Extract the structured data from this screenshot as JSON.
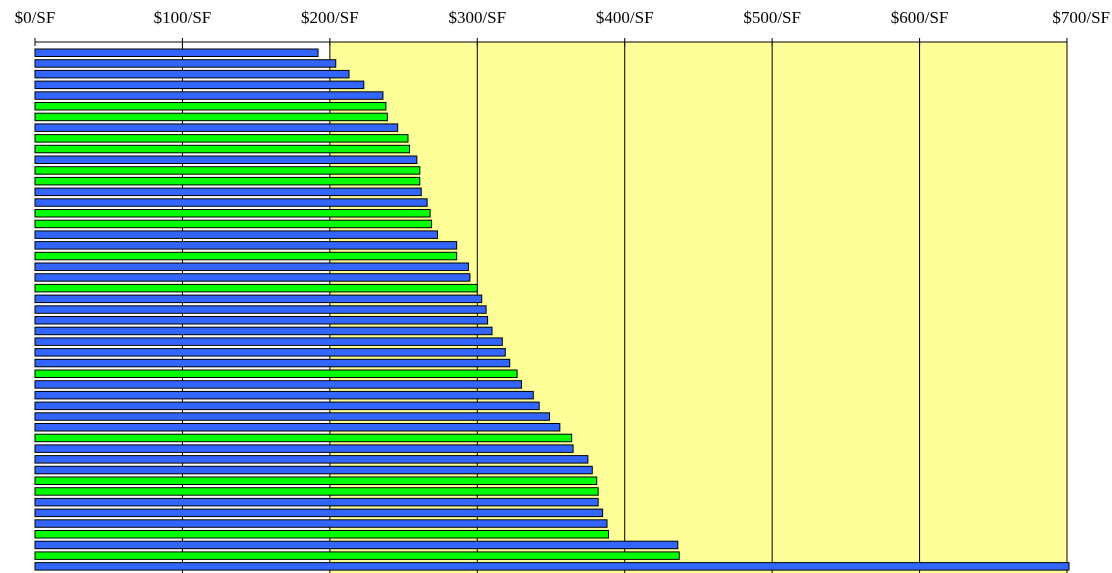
{
  "chart_data": {
    "type": "bar",
    "orientation": "horizontal",
    "title": "",
    "xlabel": "",
    "ylabel": "",
    "xlim": [
      0,
      700
    ],
    "x_ticks": [
      0,
      100,
      200,
      300,
      400,
      500,
      600,
      700
    ],
    "x_tick_labels": [
      "$0/SF",
      "$100/SF",
      "$200/SF",
      "$300/SF",
      "$400/SF",
      "$500/SF",
      "$600/SF",
      "$700/SF"
    ],
    "axis_position": "top",
    "grid": "vertical",
    "legend": "none",
    "colors": {
      "plot_background": "#ffff99",
      "blue": "#3366ff",
      "green": "#00ff00",
      "bar_outline": "#000000",
      "gridline": "#000000"
    },
    "bars": [
      {
        "value": 192,
        "color": "blue"
      },
      {
        "value": 204,
        "color": "blue"
      },
      {
        "value": 213,
        "color": "blue"
      },
      {
        "value": 223,
        "color": "blue"
      },
      {
        "value": 236,
        "color": "blue"
      },
      {
        "value": 238,
        "color": "green"
      },
      {
        "value": 239,
        "color": "green"
      },
      {
        "value": 246,
        "color": "blue"
      },
      {
        "value": 253,
        "color": "green"
      },
      {
        "value": 254,
        "color": "green"
      },
      {
        "value": 259,
        "color": "blue"
      },
      {
        "value": 261,
        "color": "green"
      },
      {
        "value": 261,
        "color": "green"
      },
      {
        "value": 262,
        "color": "blue"
      },
      {
        "value": 266,
        "color": "blue"
      },
      {
        "value": 268,
        "color": "green"
      },
      {
        "value": 269,
        "color": "green"
      },
      {
        "value": 273,
        "color": "blue"
      },
      {
        "value": 286,
        "color": "blue"
      },
      {
        "value": 286,
        "color": "green"
      },
      {
        "value": 294,
        "color": "blue"
      },
      {
        "value": 295,
        "color": "blue"
      },
      {
        "value": 300,
        "color": "green"
      },
      {
        "value": 303,
        "color": "blue"
      },
      {
        "value": 306,
        "color": "blue"
      },
      {
        "value": 307,
        "color": "blue"
      },
      {
        "value": 310,
        "color": "blue"
      },
      {
        "value": 317,
        "color": "blue"
      },
      {
        "value": 319,
        "color": "blue"
      },
      {
        "value": 322,
        "color": "blue"
      },
      {
        "value": 327,
        "color": "green"
      },
      {
        "value": 330,
        "color": "blue"
      },
      {
        "value": 338,
        "color": "blue"
      },
      {
        "value": 342,
        "color": "blue"
      },
      {
        "value": 349,
        "color": "blue"
      },
      {
        "value": 356,
        "color": "blue"
      },
      {
        "value": 364,
        "color": "green"
      },
      {
        "value": 365,
        "color": "blue"
      },
      {
        "value": 375,
        "color": "blue"
      },
      {
        "value": 378,
        "color": "blue"
      },
      {
        "value": 381,
        "color": "green"
      },
      {
        "value": 382,
        "color": "green"
      },
      {
        "value": 382,
        "color": "blue"
      },
      {
        "value": 385,
        "color": "blue"
      },
      {
        "value": 388,
        "color": "blue"
      },
      {
        "value": 389,
        "color": "green"
      },
      {
        "value": 436,
        "color": "blue"
      },
      {
        "value": 437,
        "color": "green"
      },
      {
        "value": 702,
        "color": "blue"
      }
    ]
  }
}
